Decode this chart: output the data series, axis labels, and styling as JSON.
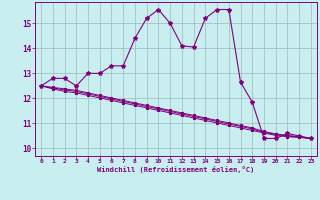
{
  "xlabel": "Windchill (Refroidissement éolien,°C)",
  "bg_color": "#c8eef0",
  "line_color": "#800080",
  "grid_color": "#a0b8c0",
  "x_ticks": [
    0,
    1,
    2,
    3,
    4,
    5,
    6,
    7,
    8,
    9,
    10,
    11,
    12,
    13,
    14,
    15,
    16,
    17,
    18,
    19,
    20,
    21,
    22,
    23
  ],
  "y_ticks": [
    10,
    11,
    12,
    13,
    14,
    15
  ],
  "ylim": [
    9.7,
    15.85
  ],
  "xlim": [
    -0.5,
    23.5
  ],
  "series1": [
    12.5,
    12.8,
    12.8,
    12.5,
    13.0,
    13.0,
    13.3,
    13.3,
    14.4,
    15.2,
    15.55,
    15.0,
    14.1,
    14.05,
    15.2,
    15.55,
    15.55,
    12.65,
    11.85,
    10.4,
    10.4,
    10.6,
    10.5,
    10.4
  ],
  "series2": [
    12.5,
    12.38,
    12.28,
    12.22,
    12.12,
    12.02,
    11.92,
    11.82,
    11.72,
    11.62,
    11.52,
    11.42,
    11.32,
    11.22,
    11.12,
    11.02,
    10.92,
    10.82,
    10.72,
    10.62,
    10.52,
    10.47,
    10.44,
    10.4
  ],
  "series3": [
    12.5,
    12.42,
    12.34,
    12.28,
    12.18,
    12.08,
    11.98,
    11.88,
    11.78,
    11.68,
    11.58,
    11.48,
    11.38,
    11.28,
    11.18,
    11.08,
    10.98,
    10.88,
    10.78,
    10.65,
    10.56,
    10.5,
    10.46,
    10.4
  ],
  "series4": [
    12.5,
    12.44,
    12.38,
    12.32,
    12.22,
    12.12,
    12.02,
    11.92,
    11.82,
    11.72,
    11.62,
    11.52,
    11.42,
    11.32,
    11.22,
    11.12,
    11.02,
    10.92,
    10.82,
    10.68,
    10.58,
    10.52,
    10.47,
    10.4
  ]
}
